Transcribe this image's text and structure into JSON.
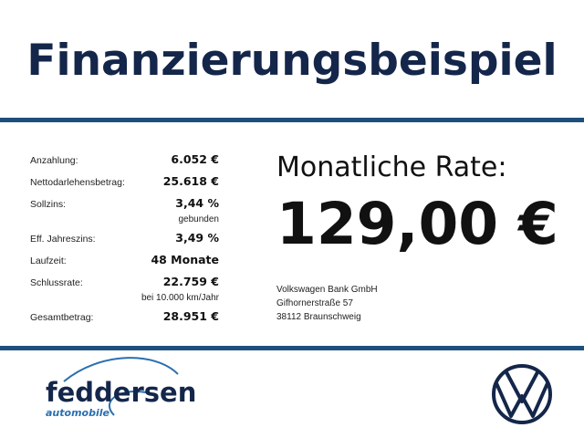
{
  "header": {
    "title": "Finanzierungsbeispiel"
  },
  "terms": [
    {
      "label": "Anzahlung:",
      "value": "6.052 €"
    },
    {
      "label": "Nettodarlehensbetrag:",
      "value": "25.618 €"
    },
    {
      "label": "Sollzins:",
      "value": "3,44 %",
      "note": "gebunden"
    },
    {
      "label": "Eff. Jahreszins:",
      "value": "3,49 %"
    },
    {
      "label": "Laufzeit:",
      "value": "48 Monate"
    },
    {
      "label": "Schlussrate:",
      "value": "22.759 €",
      "note": "bei 10.000 km/Jahr"
    },
    {
      "label": "Gesamtbetrag:",
      "value": "28.951 €"
    }
  ],
  "rate": {
    "heading": "Monatliche Rate:",
    "amount": "129,00 €"
  },
  "bank": {
    "lines": [
      "Volkswagen Bank GmbH",
      "Gifhornerstraße 57",
      "38112 Braunschweig"
    ]
  },
  "dealer": {
    "name": "feddersen",
    "tagline": "automobile"
  }
}
